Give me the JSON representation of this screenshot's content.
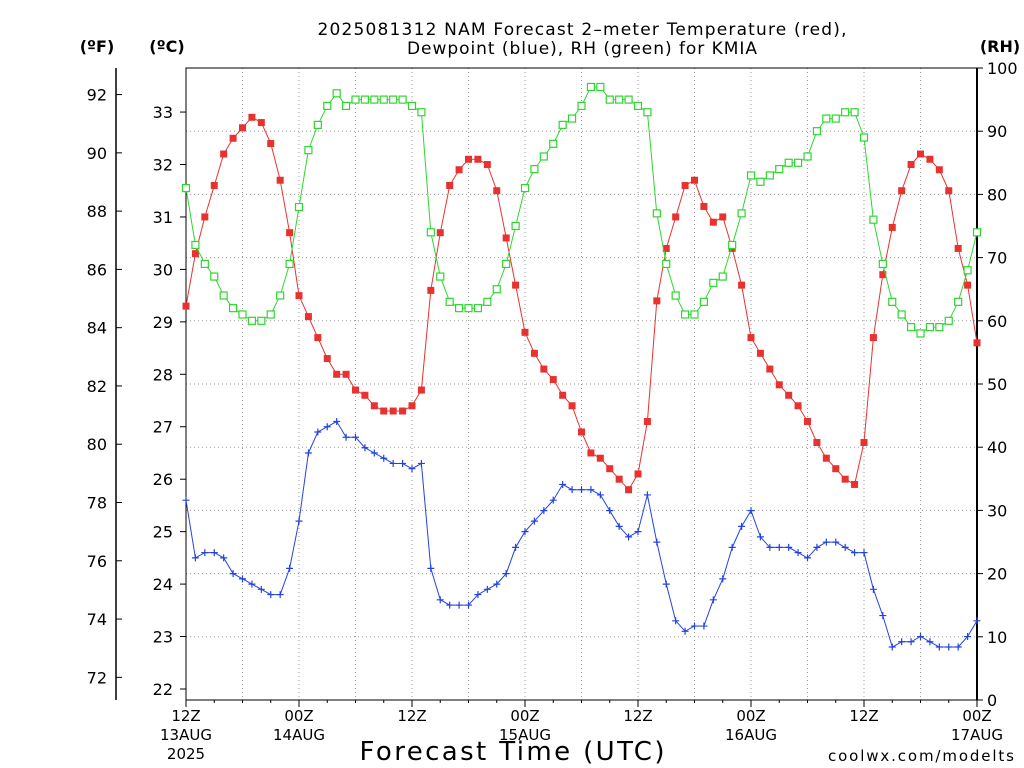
{
  "credit": {
    "text": "coolwx.com/modelts",
    "color": "#e03a3a"
  },
  "chart_data": {
    "type": "line",
    "title": [
      "2025081312 NAM Forecast 2–meter Temperature (red),",
      "Dewpoint (blue), RH (green) for KMIA"
    ],
    "xlabel": "Forecast Time (UTC)",
    "grid": true,
    "x": [
      "2025-08-13 12Z",
      "2025-08-13 13Z",
      "2025-08-13 14Z",
      "2025-08-13 15Z",
      "2025-08-13 16Z",
      "2025-08-13 17Z",
      "2025-08-13 18Z",
      "2025-08-13 19Z",
      "2025-08-13 20Z",
      "2025-08-13 21Z",
      "2025-08-13 22Z",
      "2025-08-13 23Z",
      "2025-08-14 00Z",
      "2025-08-14 01Z",
      "2025-08-14 02Z",
      "2025-08-14 03Z",
      "2025-08-14 04Z",
      "2025-08-14 05Z",
      "2025-08-14 06Z",
      "2025-08-14 07Z",
      "2025-08-14 08Z",
      "2025-08-14 09Z",
      "2025-08-14 10Z",
      "2025-08-14 11Z",
      "2025-08-14 12Z",
      "2025-08-14 13Z",
      "2025-08-14 14Z",
      "2025-08-14 15Z",
      "2025-08-14 16Z",
      "2025-08-14 17Z",
      "2025-08-14 18Z",
      "2025-08-14 19Z",
      "2025-08-14 20Z",
      "2025-08-14 21Z",
      "2025-08-14 22Z",
      "2025-08-14 23Z",
      "2025-08-15 00Z",
      "2025-08-15 01Z",
      "2025-08-15 02Z",
      "2025-08-15 03Z",
      "2025-08-15 04Z",
      "2025-08-15 05Z",
      "2025-08-15 06Z",
      "2025-08-15 07Z",
      "2025-08-15 08Z",
      "2025-08-15 09Z",
      "2025-08-15 10Z",
      "2025-08-15 11Z",
      "2025-08-15 12Z",
      "2025-08-15 13Z",
      "2025-08-15 14Z",
      "2025-08-15 15Z",
      "2025-08-15 16Z",
      "2025-08-15 17Z",
      "2025-08-15 18Z",
      "2025-08-15 19Z",
      "2025-08-15 20Z",
      "2025-08-15 21Z",
      "2025-08-15 22Z",
      "2025-08-15 23Z",
      "2025-08-16 00Z",
      "2025-08-16 01Z",
      "2025-08-16 02Z",
      "2025-08-16 03Z",
      "2025-08-16 04Z",
      "2025-08-16 05Z",
      "2025-08-16 06Z",
      "2025-08-16 07Z",
      "2025-08-16 08Z",
      "2025-08-16 09Z",
      "2025-08-16 10Z",
      "2025-08-16 11Z",
      "2025-08-16 12Z",
      "2025-08-16 13Z",
      "2025-08-16 14Z",
      "2025-08-16 15Z",
      "2025-08-16 16Z",
      "2025-08-16 17Z",
      "2025-08-16 18Z",
      "2025-08-16 19Z",
      "2025-08-16 20Z",
      "2025-08-16 21Z",
      "2025-08-16 22Z",
      "2025-08-16 23Z",
      "2025-08-17 00Z"
    ],
    "x_ticks": [
      {
        "at": "2025-08-13 12Z",
        "lines": [
          "12Z",
          "13AUG",
          "2025"
        ]
      },
      {
        "at": "2025-08-14 00Z",
        "lines": [
          "00Z",
          "14AUG"
        ]
      },
      {
        "at": "2025-08-14 12Z",
        "lines": [
          "12Z"
        ]
      },
      {
        "at": "2025-08-15 00Z",
        "lines": [
          "00Z",
          "15AUG"
        ]
      },
      {
        "at": "2025-08-15 12Z",
        "lines": [
          "12Z"
        ]
      },
      {
        "at": "2025-08-16 00Z",
        "lines": [
          "00Z",
          "16AUG"
        ]
      },
      {
        "at": "2025-08-16 12Z",
        "lines": [
          "12Z"
        ]
      },
      {
        "at": "2025-08-17 00Z",
        "lines": [
          "00Z",
          "17AUG"
        ]
      }
    ],
    "y_axes": {
      "left_outer": {
        "label": "(ºF)",
        "ticks": [
          72,
          74,
          76,
          78,
          80,
          82,
          84,
          86,
          88,
          90,
          92
        ]
      },
      "left": {
        "label": "(ºC)",
        "ticks": [
          22,
          23,
          24,
          25,
          26,
          27,
          28,
          29,
          30,
          31,
          32,
          33
        ],
        "range": [
          21.79,
          33.84
        ]
      },
      "right": {
        "label": "(RH)",
        "ticks": [
          0,
          10,
          20,
          30,
          40,
          50,
          60,
          70,
          80,
          90,
          100
        ],
        "range": [
          0,
          100
        ]
      }
    },
    "series": [
      {
        "name": "Temperature",
        "color": "#e8322f",
        "marker": "filled-square",
        "y_axis": "left",
        "values": [
          29.3,
          30.3,
          31.0,
          31.6,
          32.2,
          32.5,
          32.7,
          32.9,
          32.8,
          32.4,
          31.7,
          30.7,
          29.5,
          29.1,
          28.7,
          28.3,
          28.0,
          28.0,
          27.7,
          27.6,
          27.4,
          27.3,
          27.3,
          27.3,
          27.4,
          27.7,
          29.6,
          30.7,
          31.6,
          31.9,
          32.1,
          32.1,
          32.0,
          31.5,
          30.6,
          29.7,
          28.8,
          28.4,
          28.1,
          27.9,
          27.6,
          27.4,
          26.9,
          26.5,
          26.4,
          26.2,
          26.0,
          25.8,
          26.1,
          27.1,
          29.4,
          30.4,
          31.0,
          31.6,
          31.7,
          31.2,
          30.9,
          31.0,
          30.4,
          29.7,
          28.7,
          28.4,
          28.1,
          27.8,
          27.6,
          27.4,
          27.1,
          26.7,
          26.4,
          26.2,
          26.0,
          25.9,
          26.7,
          28.7,
          29.9,
          30.8,
          31.5,
          32.0,
          32.2,
          32.1,
          31.9,
          31.5,
          30.4,
          29.7,
          28.6
        ]
      },
      {
        "name": "Dewpoint",
        "color": "#2343e0",
        "marker": "plus",
        "y_axis": "left",
        "values": [
          25.6,
          24.5,
          24.6,
          24.6,
          24.5,
          24.2,
          24.1,
          24.0,
          23.9,
          23.8,
          23.8,
          24.3,
          25.2,
          26.5,
          26.9,
          27.0,
          27.1,
          26.8,
          26.8,
          26.6,
          26.5,
          26.4,
          26.3,
          26.3,
          26.2,
          26.3,
          24.3,
          23.7,
          23.6,
          23.6,
          23.6,
          23.8,
          23.9,
          24.0,
          24.2,
          24.7,
          25.0,
          25.2,
          25.4,
          25.6,
          25.9,
          25.8,
          25.8,
          25.8,
          25.7,
          25.4,
          25.1,
          24.9,
          25.0,
          25.7,
          24.8,
          24.0,
          23.3,
          23.1,
          23.2,
          23.2,
          23.7,
          24.1,
          24.7,
          25.1,
          25.4,
          24.9,
          24.7,
          24.7,
          24.7,
          24.6,
          24.5,
          24.7,
          24.8,
          24.8,
          24.7,
          24.6,
          24.6,
          23.9,
          23.4,
          22.8,
          22.9,
          22.9,
          23.0,
          22.9,
          22.8,
          22.8,
          22.8,
          23.0,
          23.3
        ]
      },
      {
        "name": "RH",
        "color": "#2fd62f",
        "marker": "open-square",
        "y_axis": "right",
        "values": [
          81,
          72,
          69,
          67,
          64,
          62,
          61,
          60,
          60,
          61,
          64,
          69,
          78,
          87,
          91,
          94,
          96,
          94,
          95,
          95,
          95,
          95,
          95,
          95,
          94,
          93,
          74,
          67,
          63,
          62,
          62,
          62,
          63,
          65,
          69,
          75,
          81,
          84,
          86,
          88,
          91,
          92,
          94,
          97,
          97,
          95,
          95,
          95,
          94,
          93,
          77,
          69,
          64,
          61,
          61,
          63,
          66,
          67,
          72,
          77,
          83,
          82,
          83,
          84,
          85,
          85,
          86,
          90,
          92,
          92,
          93,
          93,
          89,
          76,
          69,
          63,
          61,
          59,
          58,
          59,
          59,
          60,
          63,
          68,
          74
        ]
      }
    ]
  }
}
